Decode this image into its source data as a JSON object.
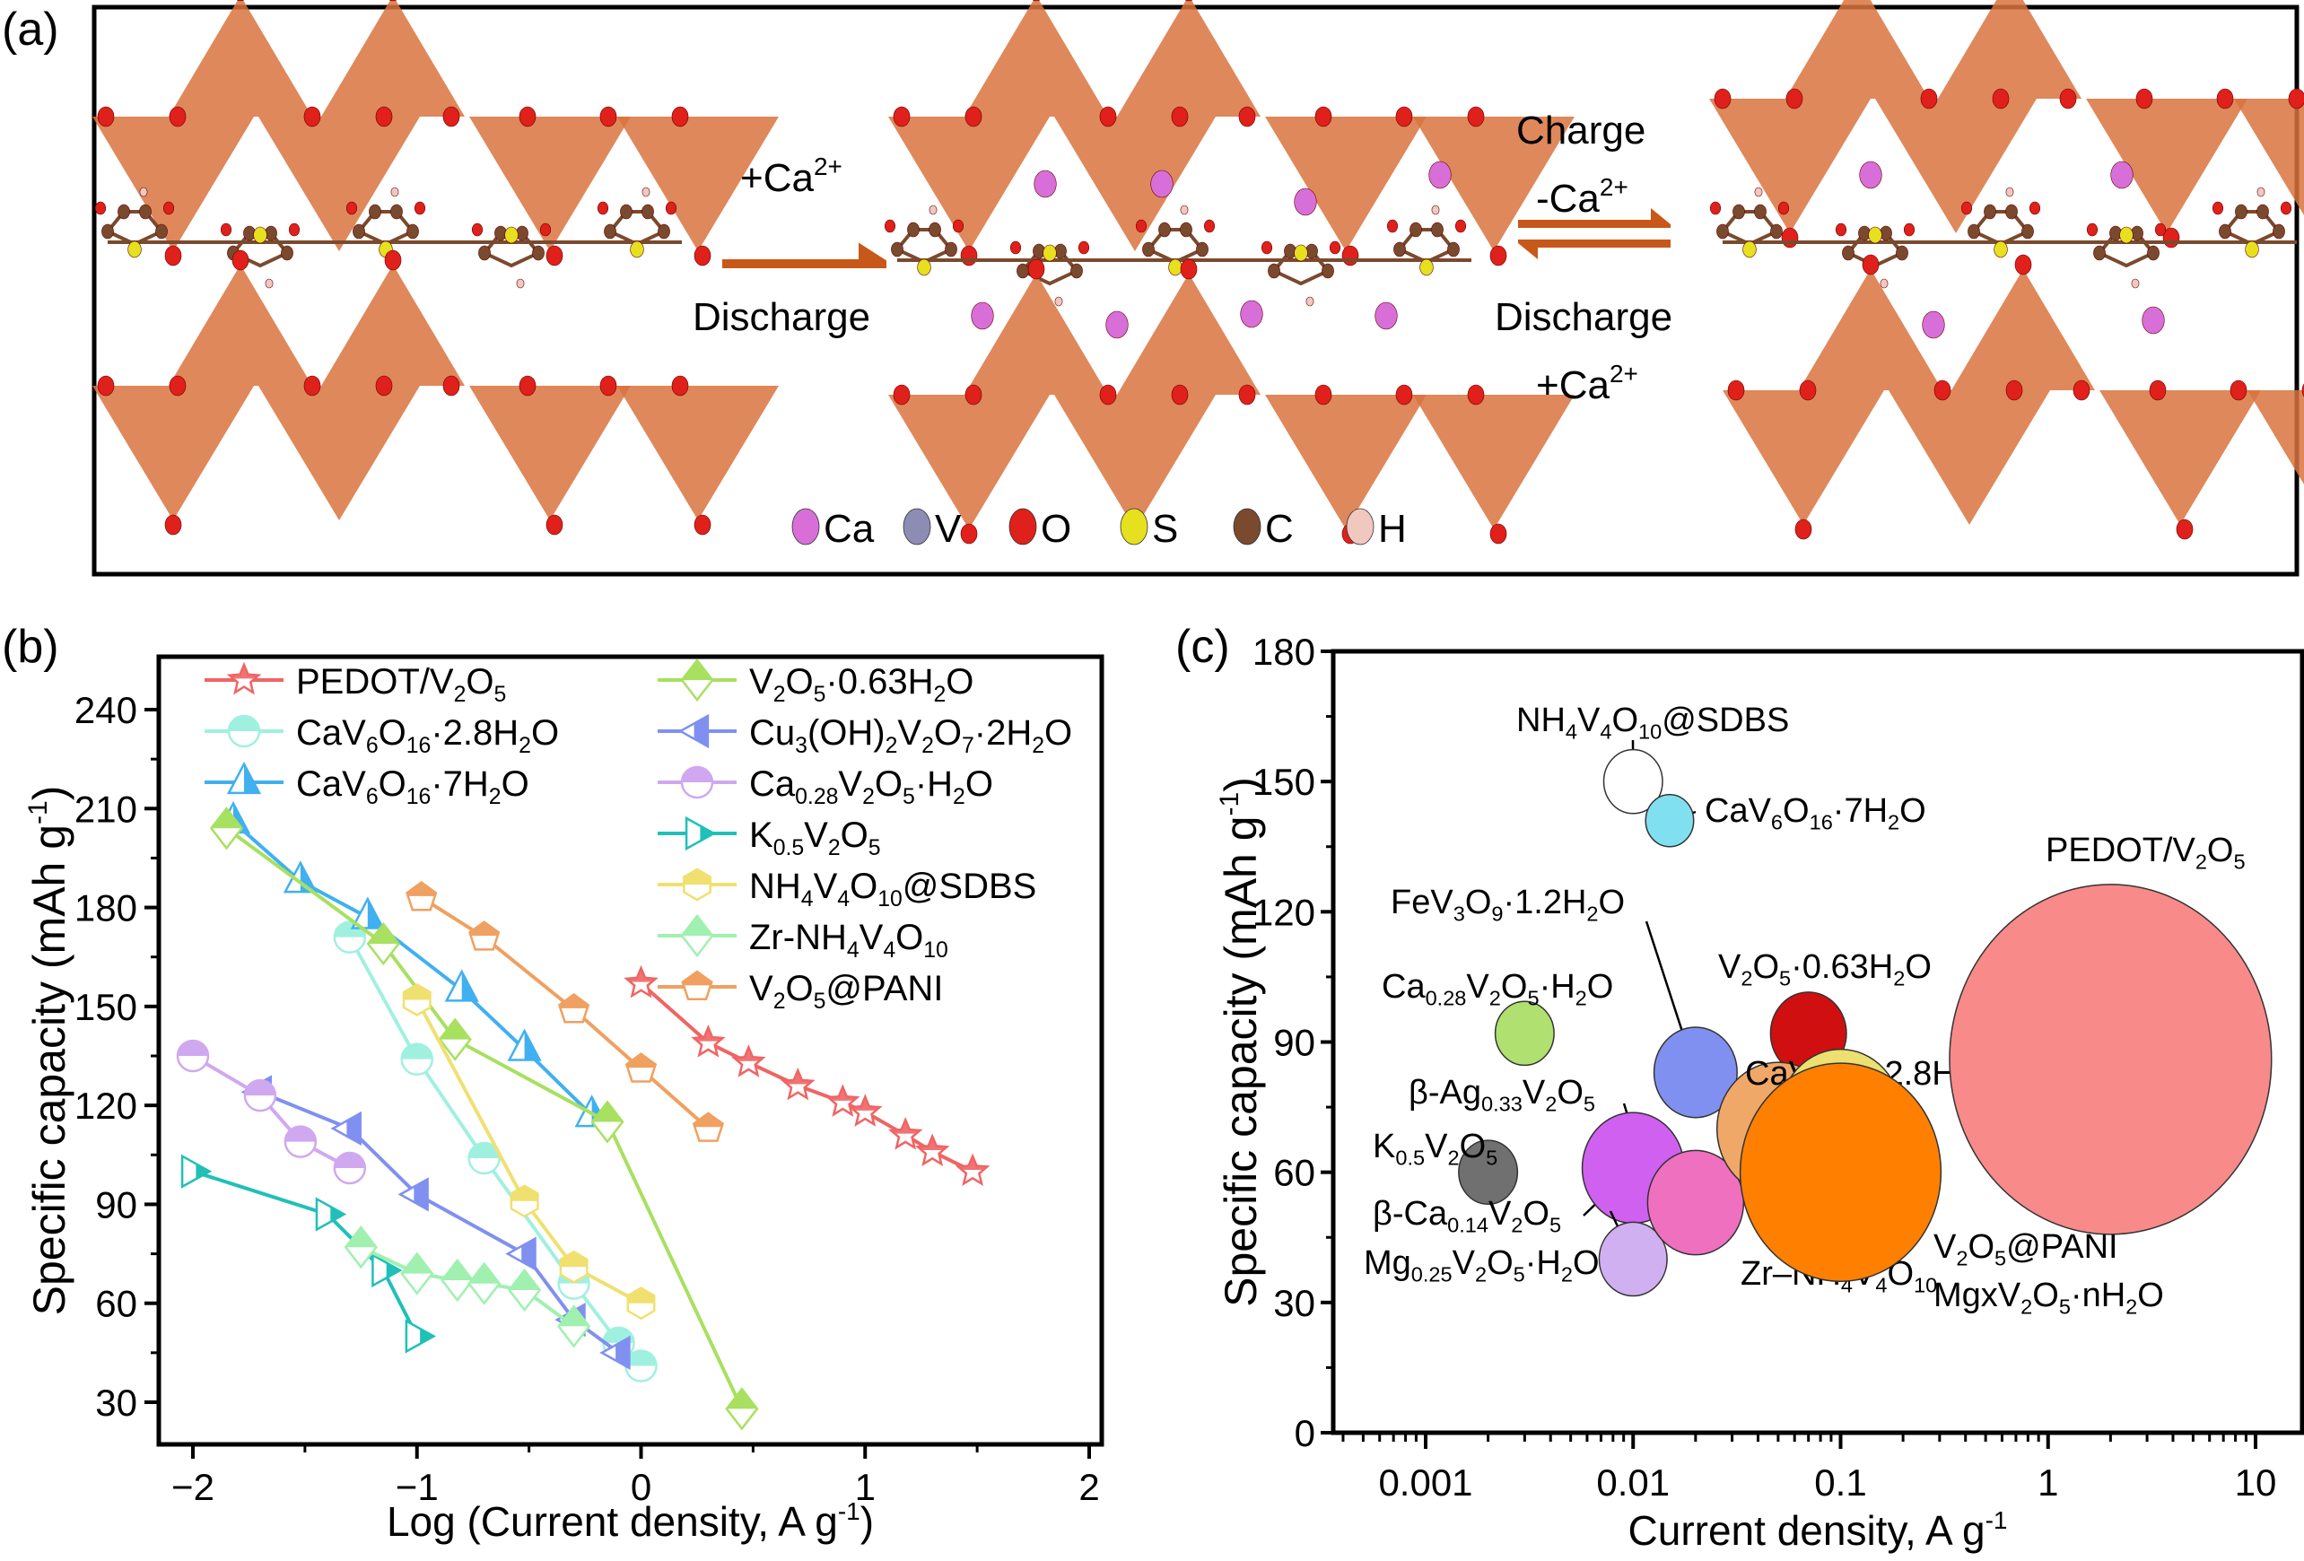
{
  "panels": {
    "a": {
      "label": "(a)"
    },
    "b": {
      "label": "(b)"
    },
    "c": {
      "label": "(c)"
    }
  },
  "scheme": {
    "step1": {
      "top": "+Ca",
      "top_sup": "2+",
      "bottom": "Discharge"
    },
    "step2": {
      "top1": "Charge",
      "top2": "-Ca",
      "top2_sup": "2+",
      "bottom1": "Discharge",
      "bottom2": "+Ca",
      "bottom2_sup": "2+"
    },
    "legend": [
      {
        "symbol": "Ca",
        "color": "#d86fd8"
      },
      {
        "symbol": "V",
        "color": "#8c8cb4"
      },
      {
        "symbol": "O",
        "color": "#e0201a"
      },
      {
        "symbol": "S",
        "color": "#e6e01e"
      },
      {
        "symbol": "C",
        "color": "#7a4a2e"
      },
      {
        "symbol": "H",
        "color": "#f0c8c0"
      }
    ],
    "colors": {
      "polyhedra": "#d9733e",
      "arrow": "#c8581a",
      "oxygen": "#e0201a",
      "calcium": "#d86fd8",
      "sulfur": "#e6e01e",
      "carbon": "#7a4a2e",
      "hydrogen": "#f0c8c0"
    }
  },
  "chart_data": [
    {
      "type": "line",
      "title": "",
      "xlabel": "Log (Current density, A g-1)",
      "ylabel": "Specific capacity (mAh g-1)",
      "xlim": [
        -2.1,
        2
      ],
      "ylim": [
        20,
        255
      ],
      "xticks": [
        -2,
        -1,
        0,
        1,
        2
      ],
      "yticks": [
        30,
        60,
        90,
        120,
        150,
        180,
        210,
        240
      ],
      "legend_position": "top",
      "series": [
        {
          "name": "PEDOT/V2O5",
          "color": "#f06464",
          "marker": "star",
          "x": [
            0,
            0.3,
            0.48,
            0.7,
            0.9,
            1.0,
            1.18,
            1.3,
            1.48
          ],
          "y": [
            157,
            139,
            133,
            126,
            121,
            118,
            111,
            106,
            100
          ]
        },
        {
          "name": "CaV6O16·2.8H2O",
          "color": "#a0f0e0",
          "marker": "circle",
          "x": [
            -1.3,
            -1.0,
            -0.7,
            -0.3,
            -0.1,
            0
          ],
          "y": [
            171,
            134,
            104,
            66,
            48,
            41
          ]
        },
        {
          "name": "CaV6O16·7H2O",
          "color": "#40b0f0",
          "marker": "triangle-up",
          "x": [
            -1.82,
            -1.52,
            -1.22,
            -0.8,
            -0.52,
            -0.22
          ],
          "y": [
            206,
            188,
            177,
            155,
            137,
            117
          ]
        },
        {
          "name": "V2O5·0.63H2O",
          "color": "#a8e060",
          "marker": "diamond",
          "x": [
            -1.85,
            -1.15,
            -0.83,
            -0.15,
            0.45
          ],
          "y": [
            204,
            169,
            140,
            115,
            28
          ]
        },
        {
          "name": "Cu3(OH)2V2O7·2H2O",
          "color": "#8090f0",
          "marker": "triangle-left",
          "x": [
            -1.7,
            -1.3,
            -1.0,
            -0.52,
            -0.3,
            -0.1
          ],
          "y": [
            124,
            113,
            93,
            75,
            55,
            45
          ]
        },
        {
          "name": "Ca0.28V2O5·H2O",
          "color": "#d0a8f0",
          "marker": "circle",
          "x": [
            -2.0,
            -1.7,
            -1.52,
            -1.3
          ],
          "y": [
            135,
            123,
            109,
            101
          ]
        },
        {
          "name": "K0.5V2O5",
          "color": "#20c0b8",
          "marker": "triangle-right",
          "x": [
            -2.0,
            -1.4,
            -1.15,
            -1.0
          ],
          "y": [
            100,
            87,
            70,
            50
          ]
        },
        {
          "name": "NH4V4O10@SDBS",
          "color": "#f0e070",
          "marker": "hexagon",
          "x": [
            -1.0,
            -0.52,
            -0.3,
            0
          ],
          "y": [
            152,
            91,
            71,
            60
          ]
        },
        {
          "name": "Zr-NH4V4O10",
          "color": "#a0f0b0",
          "marker": "diamond",
          "x": [
            -1.25,
            -1.0,
            -0.82,
            -0.7,
            -0.52,
            -0.3
          ],
          "y": [
            77,
            69,
            67,
            66,
            64,
            53
          ]
        },
        {
          "name": "V2O5@PANI",
          "color": "#f0a060",
          "marker": "pentagon",
          "x": [
            -0.98,
            -0.7,
            -0.3,
            0,
            0.3
          ],
          "y": [
            183,
            171,
            149,
            131,
            113
          ]
        }
      ]
    },
    {
      "type": "scatter",
      "title": "",
      "xlabel": "Current density, A g-1",
      "ylabel": "Specific capacity (mAh g-1)",
      "xscale": "log",
      "xlim": [
        0.0005,
        15
      ],
      "ylim": [
        0,
        180
      ],
      "xticks": [
        0.001,
        0.01,
        0.1,
        1,
        10
      ],
      "xtick_labels": [
        "0.001",
        "0.01",
        "0.1",
        "1",
        "10"
      ],
      "yticks": [
        0,
        30,
        60,
        90,
        120,
        150,
        180
      ],
      "points": [
        {
          "name": "NH4V4O10@SDBS",
          "x": 0.01,
          "y": 150,
          "size": 0.3,
          "color": "#ffffff"
        },
        {
          "name": "CaV6O16·7H2O",
          "x": 0.015,
          "y": 141,
          "size": 0.2,
          "color": "#80e0f0"
        },
        {
          "name": "FeV3O9·1.2H2O",
          "x": 0.02,
          "y": 83,
          "size": 0.6,
          "color": "#8090f0"
        },
        {
          "name": "Ca0.28V2O5·H2O",
          "x": 0.003,
          "y": 92,
          "size": 0.3,
          "color": "#b0e070"
        },
        {
          "name": "V2O5·0.63H2O",
          "x": 0.07,
          "y": 92,
          "size": 0.5,
          "color": "#d01010"
        },
        {
          "name": "β-Ag0.33V2O5",
          "x": 0.01,
          "y": 69,
          "size": 0.1,
          "color": "#2080f0"
        },
        {
          "name": "K0.5V2O5",
          "x": 0.002,
          "y": 60,
          "size": 0.3,
          "color": "#707070"
        },
        {
          "name": "β-Ca0.14V2O5",
          "x": 0.01,
          "y": 61,
          "size": 0.9,
          "color": "#d060f0"
        },
        {
          "name": "Mg0.25V2O5·H2O",
          "x": 0.01,
          "y": 40,
          "size": 0.4,
          "color": "#d0b0f0"
        },
        {
          "name": "Zr–NH4V4O10",
          "x": 0.02,
          "y": 53,
          "size": 0.8,
          "color": "#f070c0"
        },
        {
          "name": "CaV6O16·2.8H2O",
          "x": 0.05,
          "y": 70,
          "size": 1.3,
          "color": "#f0a868"
        },
        {
          "name": "V2O5@PANI",
          "x": 0.1,
          "y": 73,
          "size": 1.3,
          "color": "#ece070"
        },
        {
          "name": "MgxV2O5·nH2O",
          "x": 0.1,
          "y": 60,
          "size": 3.5,
          "color": "#ff8000"
        },
        {
          "name": "PEDOT/V2O5",
          "x": 2,
          "y": 86,
          "size": 9,
          "color": "#f88a8a"
        }
      ]
    }
  ]
}
